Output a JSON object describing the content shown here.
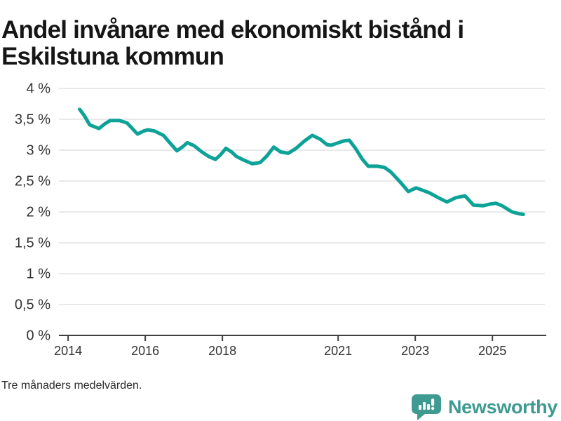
{
  "title": "Andel invånare med ekonomiskt bistånd i Eskilstuna kommun",
  "footnote": "Tre månaders medelvärden.",
  "brand": {
    "name": "Newsworthy",
    "color": "#3f9a92",
    "icon": "speech-bubble-bar-chart-icon"
  },
  "colors": {
    "line": "#0da298",
    "grid": "#e2e2e2",
    "axis": "#404040",
    "tick_label": "#333333",
    "title": "#161616",
    "background": "#ffffff"
  },
  "chart_data": {
    "type": "line",
    "title": "Andel invånare med ekonomiskt bistånd i Eskilstuna kommun",
    "xlabel": "",
    "ylabel": "",
    "unit": "%",
    "grid": "horizontal",
    "legend_position": "none",
    "xlim": [
      2013.78,
      2026.36
    ],
    "ylim": [
      0,
      4
    ],
    "x_ticks": [
      2014,
      2016,
      2018,
      2021,
      2023,
      2025
    ],
    "x_tick_labels": [
      "2014",
      "2016",
      "2018",
      "2021",
      "2023",
      "2025"
    ],
    "y_ticks": [
      0,
      0.5,
      1,
      1.5,
      2,
      2.5,
      3,
      3.5,
      4
    ],
    "y_tick_labels": [
      "0 %",
      "0,5 %",
      "1 %",
      "1,5 %",
      "2 %",
      "2,5 %",
      "3 %",
      "3,5 %",
      "4 %"
    ],
    "series": [
      {
        "name": "Andel invånare med ekonomiskt bistånd",
        "color": "#0da298",
        "x": [
          2014.3,
          2014.42,
          2014.56,
          2014.8,
          2014.96,
          2015.09,
          2015.33,
          2015.53,
          2015.8,
          2015.96,
          2016.07,
          2016.24,
          2016.47,
          2016.65,
          2016.82,
          2016.96,
          2017.09,
          2017.27,
          2017.45,
          2017.64,
          2017.82,
          2017.96,
          2018.09,
          2018.24,
          2018.36,
          2018.55,
          2018.78,
          2018.98,
          2019.16,
          2019.33,
          2019.51,
          2019.71,
          2019.91,
          2020.11,
          2020.33,
          2020.53,
          2020.71,
          2020.82,
          2020.96,
          2021.15,
          2021.29,
          2021.45,
          2021.62,
          2021.78,
          2022.02,
          2022.2,
          2022.36,
          2022.6,
          2022.82,
          2023.02,
          2023.15,
          2023.36,
          2023.6,
          2023.82,
          2024.05,
          2024.29,
          2024.51,
          2024.76,
          2024.96,
          2025.09,
          2025.25,
          2025.51,
          2025.69,
          2025.8
        ],
        "y": [
          3.66,
          3.56,
          3.41,
          3.35,
          3.43,
          3.48,
          3.48,
          3.44,
          3.26,
          3.31,
          3.33,
          3.31,
          3.24,
          3.11,
          2.99,
          3.05,
          3.12,
          3.07,
          2.98,
          2.9,
          2.85,
          2.93,
          3.03,
          2.97,
          2.9,
          2.84,
          2.78,
          2.8,
          2.91,
          3.05,
          2.97,
          2.95,
          3.03,
          3.14,
          3.24,
          3.18,
          3.09,
          3.08,
          3.11,
          3.15,
          3.16,
          3.03,
          2.86,
          2.74,
          2.74,
          2.72,
          2.65,
          2.49,
          2.33,
          2.39,
          2.36,
          2.31,
          2.23,
          2.16,
          2.23,
          2.26,
          2.11,
          2.1,
          2.13,
          2.14,
          2.1,
          2.0,
          1.97,
          1.96
        ]
      }
    ]
  }
}
